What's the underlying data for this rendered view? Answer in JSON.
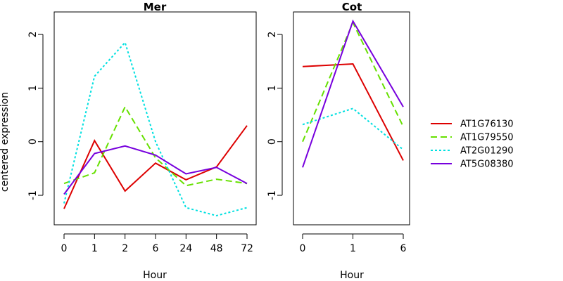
{
  "figure": {
    "ylabel": "centered expression",
    "legend": {
      "position": "right",
      "entries": [
        {
          "name": "AT1G76130",
          "color": "#dd0000",
          "dash": "solid"
        },
        {
          "name": "AT1G79550",
          "color": "#66e000",
          "dash": "dashed"
        },
        {
          "name": "AT2G01290",
          "color": "#00e0e0",
          "dash": "dotted"
        },
        {
          "name": "AT5G08380",
          "color": "#7700dd",
          "dash": "solid"
        }
      ]
    }
  },
  "chart_data": [
    {
      "type": "line",
      "title": "Mer",
      "xlabel": "Hour",
      "ylabel": "centered expression",
      "categories": [
        "0",
        "1",
        "2",
        "6",
        "24",
        "48",
        "72"
      ],
      "ylim": [
        -1.55,
        2.3
      ],
      "yticks": [
        -1,
        0,
        1,
        2
      ],
      "grid": false,
      "series": [
        {
          "name": "AT1G76130",
          "values": [
            -1.25,
            0.02,
            -0.92,
            -0.4,
            -0.71,
            -0.47,
            0.3
          ]
        },
        {
          "name": "AT1G79550",
          "values": [
            -0.78,
            -0.58,
            0.65,
            -0.3,
            -0.82,
            -0.7,
            -0.78
          ]
        },
        {
          "name": "AT2G01290",
          "values": [
            -1.15,
            1.22,
            1.85,
            0.0,
            -1.23,
            -1.38,
            -1.23
          ]
        },
        {
          "name": "AT5G08380",
          "values": [
            -0.98,
            -0.22,
            -0.08,
            -0.25,
            -0.6,
            -0.48,
            -0.78
          ]
        }
      ]
    },
    {
      "type": "line",
      "title": "Cot",
      "xlabel": "Hour",
      "categories": [
        "0",
        "1",
        "6"
      ],
      "ylim": [
        -1.55,
        2.3
      ],
      "yticks": [
        -1,
        0,
        1,
        2
      ],
      "grid": false,
      "series": [
        {
          "name": "AT1G76130",
          "values": [
            1.4,
            1.45,
            -0.35
          ]
        },
        {
          "name": "AT1G79550",
          "values": [
            0.0,
            2.22,
            0.28
          ]
        },
        {
          "name": "AT2G01290",
          "values": [
            0.32,
            0.62,
            -0.15
          ]
        },
        {
          "name": "AT5G08380",
          "values": [
            -0.48,
            2.25,
            0.65
          ]
        }
      ]
    }
  ]
}
